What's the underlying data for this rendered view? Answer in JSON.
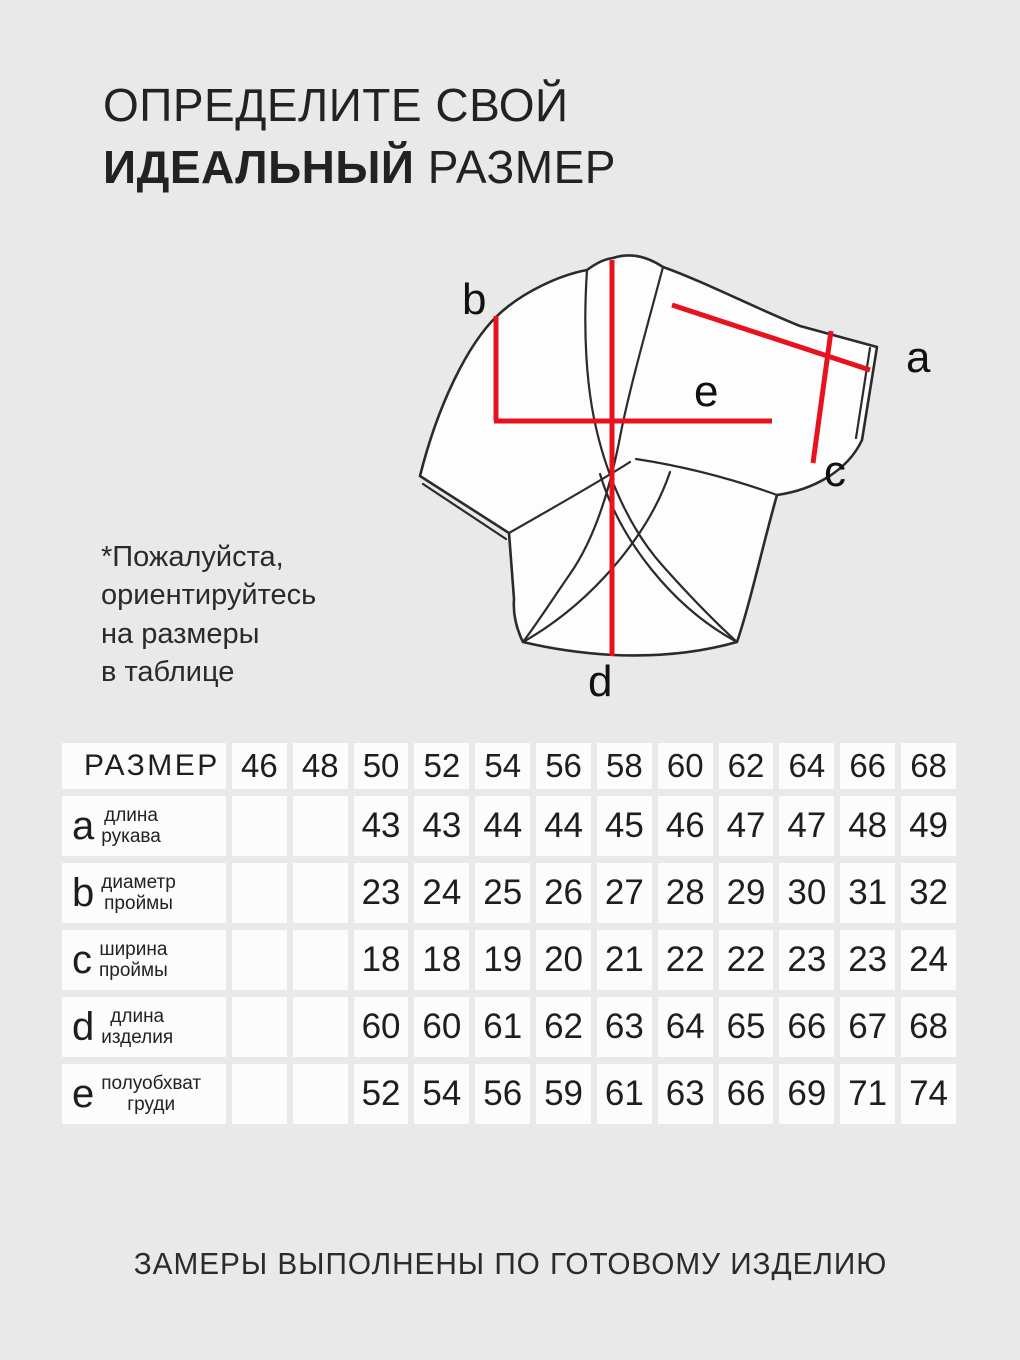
{
  "theme": {
    "background": "#e9e9e9",
    "cell_background": "#fcfcfc",
    "text_color": "#1e1e1e",
    "accent_red": "#e8121f"
  },
  "page": {
    "title_line1": "ОПРЕДЕЛИТЕ СВОЙ",
    "title_line2_bold": "ИДЕАЛЬНЫЙ",
    "title_line2_rest": "РАЗМЕР",
    "note_lines": [
      "*Пожалуйста,",
      "ориентируйтесь",
      "на размеры",
      "в таблице"
    ],
    "footer": "ЗАМЕРЫ ВЫПОЛНЕНЫ ПО ГОТОВОМУ ИЗДЕЛИЮ"
  },
  "diagram": {
    "labels": {
      "a": "a",
      "b": "b",
      "c": "c",
      "d": "d",
      "e": "e"
    }
  },
  "size_table": {
    "header": "РАЗМЕР",
    "sizes": [
      "46",
      "48",
      "50",
      "52",
      "54",
      "56",
      "58",
      "60",
      "62",
      "64",
      "66",
      "68"
    ],
    "rows": [
      {
        "letter": "a",
        "label_line1": "длина",
        "label_line2": "рукава",
        "values": [
          "",
          "",
          "43",
          "43",
          "44",
          "44",
          "45",
          "46",
          "47",
          "47",
          "48",
          "49"
        ]
      },
      {
        "letter": "b",
        "label_line1": "диаметр",
        "label_line2": "проймы",
        "values": [
          "",
          "",
          "23",
          "24",
          "25",
          "26",
          "27",
          "28",
          "29",
          "30",
          "31",
          "32"
        ]
      },
      {
        "letter": "c",
        "label_line1": "ширина",
        "label_line2": "проймы",
        "values": [
          "",
          "",
          "18",
          "18",
          "19",
          "20",
          "21",
          "22",
          "22",
          "23",
          "23",
          "24"
        ]
      },
      {
        "letter": "d",
        "label_line1": "длина",
        "label_line2": "изделия",
        "values": [
          "",
          "",
          "60",
          "60",
          "61",
          "62",
          "63",
          "64",
          "65",
          "66",
          "67",
          "68"
        ]
      },
      {
        "letter": "e",
        "label_line1": "полуобхват",
        "label_line2": "груди",
        "values": [
          "",
          "",
          "52",
          "54",
          "56",
          "59",
          "61",
          "63",
          "66",
          "69",
          "71",
          "74"
        ]
      }
    ]
  }
}
